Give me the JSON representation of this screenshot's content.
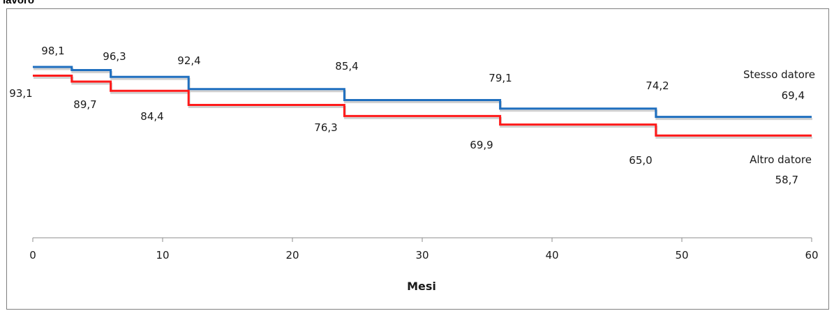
{
  "header": {
    "cut_title": "lavoro"
  },
  "chart_data": {
    "type": "line",
    "step": true,
    "xlabel": "Mesi",
    "ylabel": "",
    "xlim": [
      0,
      60
    ],
    "ylim": [
      0,
      105
    ],
    "x_ticks": [
      "0",
      "10",
      "20",
      "30",
      "40",
      "50",
      "60"
    ],
    "grid": false,
    "series": [
      {
        "name": "Stesso datore",
        "value_label": "69,4",
        "color": "#1f6fbf",
        "x": [
          0,
          3,
          6,
          12,
          24,
          36,
          48,
          60
        ],
        "y": [
          98.1,
          96.3,
          92.4,
          85.4,
          79.1,
          74.2,
          69.4,
          69.4
        ],
        "labels": [
          "98,1",
          "96,3",
          "92,4",
          "85,4",
          "79,1",
          "74,2"
        ]
      },
      {
        "name": "Altro datore",
        "value_label": "58,7",
        "color": "#ff1a1a",
        "x": [
          0,
          3,
          6,
          12,
          24,
          36,
          48,
          60
        ],
        "y": [
          93.1,
          89.7,
          84.4,
          76.3,
          69.9,
          65.0,
          58.7,
          58.7
        ],
        "labels": [
          "93,1",
          "89,7",
          "84,4",
          "76,3",
          "69,9",
          "65,0"
        ]
      }
    ]
  }
}
